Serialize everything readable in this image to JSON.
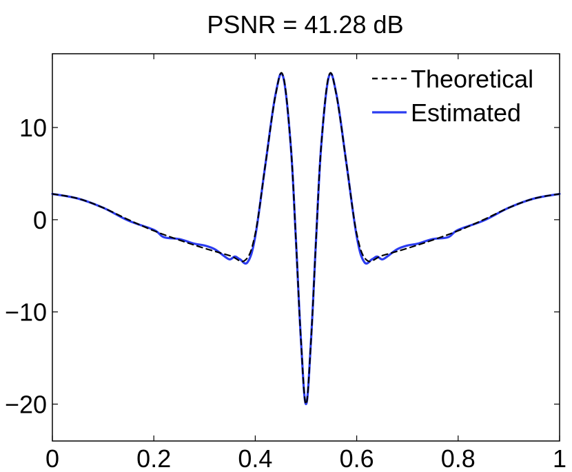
{
  "chart_data": {
    "type": "line",
    "title": "PSNR = 41.28 dB",
    "xlabel": "",
    "ylabel": "",
    "xlim": [
      0,
      1
    ],
    "ylim": [
      -24,
      18
    ],
    "x_ticks": [
      0,
      0.2,
      0.4,
      0.6,
      0.8,
      1
    ],
    "x_tick_labels": [
      "0",
      "0.2",
      "0.4",
      "0.6",
      "0.8",
      "1"
    ],
    "y_ticks": [
      -20,
      -10,
      0,
      10
    ],
    "y_tick_labels": [
      "−20",
      "−10",
      "0",
      "10"
    ],
    "grid": false,
    "legend_position": "top-right",
    "series": [
      {
        "name": "Theoretical",
        "color": "#000000",
        "style": "dashed",
        "x": [
          0,
          0.05,
          0.1,
          0.15,
          0.2,
          0.25,
          0.3,
          0.35,
          0.38,
          0.4,
          0.42,
          0.44,
          0.455,
          0.47,
          0.48,
          0.49,
          0.5,
          0.51,
          0.52,
          0.53,
          0.545,
          0.56,
          0.58,
          0.6,
          0.62,
          0.65,
          0.7,
          0.75,
          0.8,
          0.85,
          0.9,
          0.95,
          1
        ],
        "y": [
          2.8,
          2.3,
          1.3,
          0,
          -1.2,
          -2.2,
          -3.1,
          -3.9,
          -4.4,
          -1.5,
          6,
          13.5,
          15.6,
          8,
          -2,
          -13,
          -20,
          -13,
          -2,
          8,
          15.6,
          13.5,
          6,
          -1.5,
          -4.4,
          -3.9,
          -3.1,
          -2.2,
          -1.2,
          0,
          1.3,
          2.3,
          2.8
        ]
      },
      {
        "name": "Estimated",
        "color": "#2b3cf0",
        "style": "solid",
        "x": [
          0,
          0.05,
          0.1,
          0.15,
          0.2,
          0.22,
          0.25,
          0.28,
          0.3,
          0.32,
          0.34,
          0.35,
          0.36,
          0.37,
          0.385,
          0.4,
          0.42,
          0.44,
          0.455,
          0.47,
          0.48,
          0.49,
          0.5,
          0.51,
          0.52,
          0.53,
          0.545,
          0.56,
          0.58,
          0.6,
          0.615,
          0.63,
          0.64,
          0.65,
          0.66,
          0.68,
          0.7,
          0.72,
          0.75,
          0.78,
          0.8,
          0.85,
          0.9,
          0.95,
          1
        ],
        "y": [
          2.8,
          2.3,
          1.3,
          -0.1,
          -1.1,
          -1.9,
          -2.1,
          -2.6,
          -2.8,
          -3.2,
          -4.0,
          -4.3,
          -4.0,
          -4.3,
          -4.6,
          -1.8,
          6,
          13.6,
          15.5,
          8,
          -2,
          -13,
          -20,
          -13,
          -2,
          8,
          15.5,
          13.6,
          6,
          -1.8,
          -4.6,
          -4.3,
          -4.0,
          -4.3,
          -4.0,
          -3.2,
          -2.8,
          -2.6,
          -2.1,
          -1.9,
          -1.1,
          -0.1,
          1.3,
          2.3,
          2.8
        ]
      }
    ]
  }
}
